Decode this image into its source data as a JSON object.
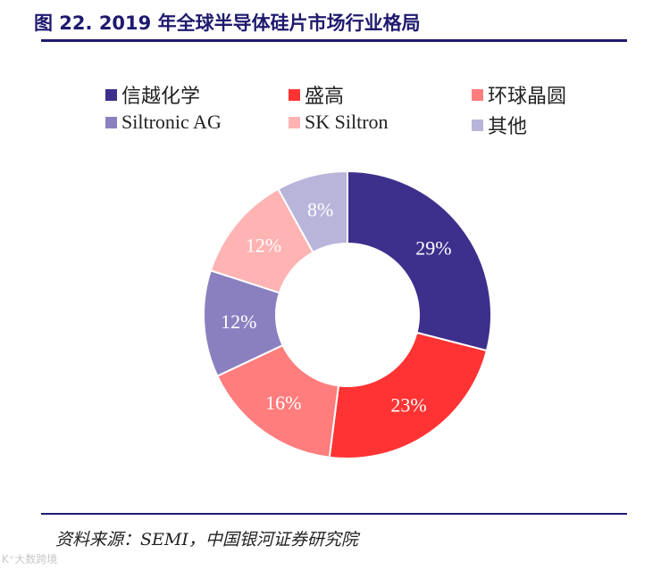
{
  "title": "图 22. 2019 年全球半导体硅片市场行业格局",
  "source": "资料来源：SEMI，中国银河证券研究院",
  "watermark": "K⁺大数跨境",
  "chart_data": {
    "type": "pie",
    "title": "",
    "legend_position": "top",
    "slices": [
      {
        "label": "信越化学",
        "value": 29,
        "display": "29%",
        "color": "#3d2f8c"
      },
      {
        "label": "盛高",
        "value": 23,
        "display": "23%",
        "color": "#ff3333"
      },
      {
        "label": "环球晶圆",
        "value": 16,
        "display": "16%",
        "color": "#ff7d7d"
      },
      {
        "label": "Siltronic AG",
        "value": 12,
        "display": "12%",
        "color": "#8a80c0"
      },
      {
        "label": "SK Siltron",
        "value": 12,
        "display": "12%",
        "color": "#ffb3b3"
      },
      {
        "label": "其他",
        "value": 8,
        "display": "8%",
        "color": "#b9b4da"
      }
    ]
  }
}
